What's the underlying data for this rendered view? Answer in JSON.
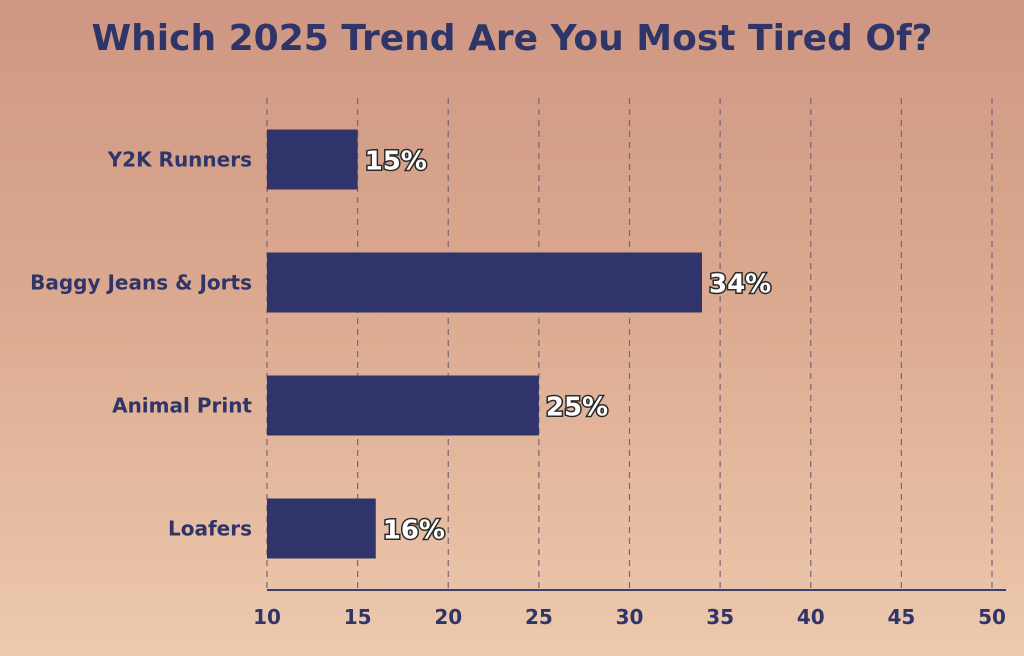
{
  "chart_data": {
    "type": "bar",
    "orientation": "horizontal",
    "title": "Which 2025 Trend Are You Most Tired Of?",
    "categories": [
      "Y2K Runners",
      "Baggy Jeans & Jorts",
      "Animal Print",
      "Loafers"
    ],
    "values": [
      15,
      34,
      25,
      16
    ],
    "data_labels": [
      "15%",
      "34%",
      "25%",
      "16%"
    ],
    "xlim": [
      10,
      50
    ],
    "xticks": [
      10,
      15,
      20,
      25,
      30,
      35,
      40,
      45,
      50
    ],
    "xlabel": "",
    "ylabel": "",
    "grid": true
  },
  "colors": {
    "bar": "#2f356b",
    "text": "#2f3568"
  }
}
